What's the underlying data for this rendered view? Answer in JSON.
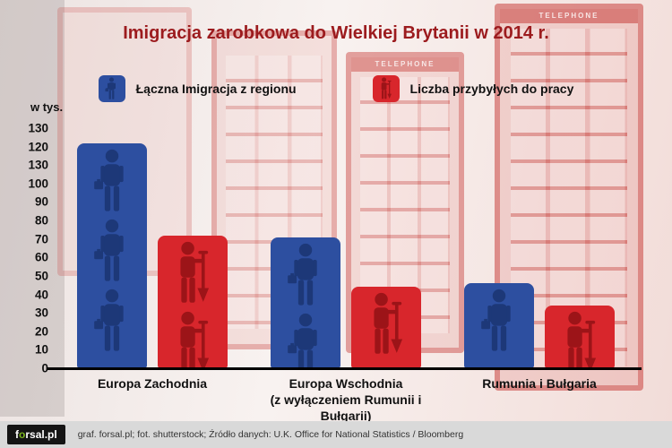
{
  "title": "Imigracja zarobkowa do Wielkiej Brytanii w 2014 r.",
  "legend": [
    {
      "label": "Łączna Imigracja z regionu",
      "color": "#2d4fa0",
      "icon": "person-icon"
    },
    {
      "label": "Liczba przybyłych do pracy",
      "color": "#d8262c",
      "icon": "worker-shovel-icon"
    }
  ],
  "y_axis": {
    "unit_label": "w tys.",
    "ticks": [
      "130",
      "120",
      "130",
      "100",
      "90",
      "80",
      "70",
      "60",
      "50",
      "40",
      "30",
      "20",
      "10",
      "0"
    ],
    "max": 130
  },
  "chart_data": {
    "type": "bar",
    "title": "Imigracja zarobkowa do Wielkiej Brytanii w 2014 r.",
    "ylabel": "w tys.",
    "ylim": [
      0,
      130
    ],
    "grid": false,
    "legend_position": "top",
    "categories": [
      "Europa Zachodnia",
      "Europa Wschodnia (z wyłączeniem Rumunii i Bułgarii)",
      "Rumunia i Bułgaria"
    ],
    "series": [
      {
        "name": "Łączna Imigracja z regionu",
        "color": "#2d4fa0",
        "values": [
          122,
          71,
          46
        ]
      },
      {
        "name": "Liczba przybyłych do pracy",
        "color": "#d8262c",
        "values": [
          72,
          44,
          34
        ]
      }
    ]
  },
  "x_labels": [
    {
      "line1": "Europa Zachodnia",
      "line2": ""
    },
    {
      "line1": "Europa Wschodnia",
      "line2": "(z wyłączeniem Rumunii i Bułgarii)"
    },
    {
      "line1": "Rumunia i Bułgaria",
      "line2": ""
    }
  ],
  "background": {
    "telephone_sign": "TELEPHONE"
  },
  "footer": {
    "logo": {
      "part1": "f",
      "part2": "o",
      "part3": "rsal.pl"
    },
    "credits": "graf. forsal.pl; fot. shutterstock;  Źródło danych:  U.K. Office for National Statistics / Bloomberg"
  }
}
